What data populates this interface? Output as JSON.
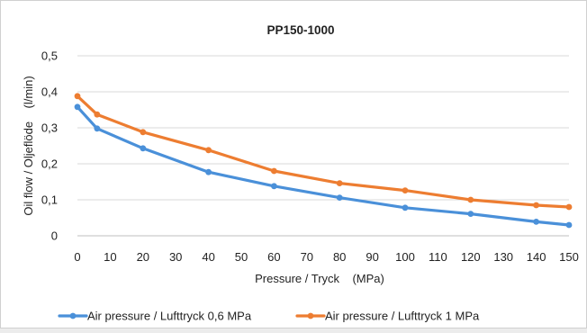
{
  "chart_data": {
    "type": "line",
    "title": "PP150-1000",
    "xlabel": "Pressure / Tryck    (MPa)",
    "ylabel": "Oil flow / Oljeflöde    (l/min)",
    "x_ticks": [
      "0",
      "10",
      "20",
      "30",
      "40",
      "50",
      "60",
      "70",
      "80",
      "90",
      "100",
      "110",
      "120",
      "130",
      "140",
      "150"
    ],
    "y_ticks": [
      "0",
      "0,1",
      "0,2",
      "0,3",
      "0,4",
      "0,5"
    ],
    "xlim": [
      0,
      150
    ],
    "ylim": [
      0,
      0.5
    ],
    "grid": "horizontal",
    "legend_position": "bottom",
    "series": [
      {
        "name": "Air pressure / Lufttryck 0,6 MPa",
        "color": "#4a90d9",
        "x": [
          0,
          6,
          20,
          40,
          60,
          80,
          100,
          120,
          140,
          150
        ],
        "y": [
          0.358,
          0.298,
          0.243,
          0.177,
          0.138,
          0.106,
          0.078,
          0.061,
          0.039,
          0.03
        ]
      },
      {
        "name": "Air pressure / Lufttryck 1 MPa",
        "color": "#ed7d31",
        "x": [
          0,
          6,
          20,
          40,
          60,
          80,
          100,
          120,
          140,
          150
        ],
        "y": [
          0.388,
          0.337,
          0.288,
          0.238,
          0.18,
          0.146,
          0.126,
          0.1,
          0.085,
          0.08
        ]
      }
    ]
  }
}
